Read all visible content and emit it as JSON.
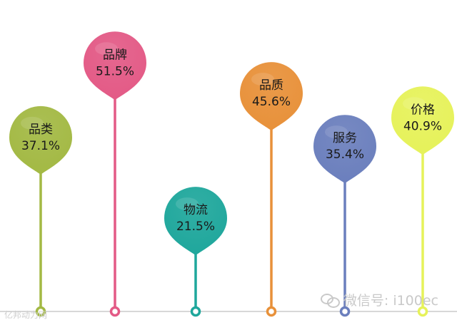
{
  "chart_data": {
    "type": "bar",
    "categories": [
      "品类",
      "品牌",
      "物流",
      "品质",
      "服务",
      "价格"
    ],
    "values": [
      37.1,
      51.5,
      21.5,
      45.6,
      35.4,
      40.9
    ],
    "value_labels": [
      "37.1%",
      "51.5%",
      "21.5%",
      "45.6%",
      "35.4%",
      "40.9%"
    ],
    "colors": [
      "#a3b944",
      "#e35a86",
      "#1fa79c",
      "#e8913a",
      "#6b7fbd",
      "#e6f25a"
    ],
    "title": "",
    "xlabel": "",
    "ylabel": "",
    "grid": false,
    "legend": "none"
  },
  "watermark": {
    "right_text": "微信号: i100ec",
    "left_text": "亿邦动力网"
  }
}
